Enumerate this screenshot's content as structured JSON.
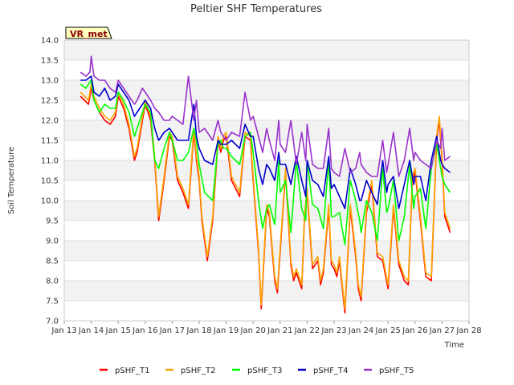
{
  "chart_data": {
    "type": "line",
    "title": "Peltier SHF Temperatures",
    "xlabel": "Time",
    "ylabel": "Soil Temperature",
    "site_label": "VR_met",
    "xlim": [
      13,
      28
    ],
    "ylim": [
      7.0,
      14.0
    ],
    "x_ticks": [
      {
        "v": 13,
        "label": "Jan 13"
      },
      {
        "v": 14,
        "label": "Jan 14"
      },
      {
        "v": 15,
        "label": "Jan 15"
      },
      {
        "v": 16,
        "label": "Jan 16"
      },
      {
        "v": 17,
        "label": "Jan 17"
      },
      {
        "v": 18,
        "label": "Jan 18"
      },
      {
        "v": 19,
        "label": "Jan 19"
      },
      {
        "v": 20,
        "label": "Jan 20"
      },
      {
        "v": 21,
        "label": "Jan 21"
      },
      {
        "v": 22,
        "label": "Jan 22"
      },
      {
        "v": 23,
        "label": "Jan 23"
      },
      {
        "v": 24,
        "label": "Jan 24"
      },
      {
        "v": 25,
        "label": "Jan 25"
      },
      {
        "v": 26,
        "label": "Jan 26"
      },
      {
        "v": 27,
        "label": "Jan 27"
      },
      {
        "v": 28,
        "label": "Jan 28"
      }
    ],
    "y_ticks": [
      "7.0",
      "7.5",
      "8.0",
      "8.5",
      "9.0",
      "9.5",
      "10.0",
      "10.5",
      "11.0",
      "11.5",
      "12.0",
      "12.5",
      "13.0",
      "13.5",
      "14.0"
    ],
    "grid": "horizontal bands",
    "legend_position": "bottom",
    "series": [
      {
        "name": "pSHF_T1",
        "color": "#ff0000",
        "x": [
          13.6,
          13.75,
          13.9,
          14.0,
          14.1,
          14.3,
          14.5,
          14.7,
          14.9,
          15.0,
          15.2,
          15.4,
          15.6,
          15.7,
          15.9,
          16.0,
          16.2,
          16.35,
          16.5,
          16.7,
          16.9,
          17.0,
          17.2,
          17.4,
          17.6,
          17.8,
          17.9,
          18.0,
          18.1,
          18.3,
          18.5,
          18.7,
          18.8,
          18.9,
          19.0,
          19.2,
          19.5,
          19.7,
          19.9,
          20.0,
          20.2,
          20.3,
          20.4,
          20.5,
          20.6,
          20.8,
          20.9,
          21.0,
          21.2,
          21.4,
          21.5,
          21.6,
          21.8,
          21.9,
          22.0,
          22.2,
          22.4,
          22.5,
          22.6,
          22.8,
          22.9,
          23.0,
          23.1,
          23.2,
          23.4,
          23.6,
          23.8,
          23.9,
          24.0,
          24.2,
          24.4,
          24.6,
          24.8,
          25.0,
          25.2,
          25.4,
          25.6,
          25.75,
          25.9,
          26.0,
          26.2,
          26.4,
          26.6,
          26.8,
          26.9,
          27.0,
          27.1,
          27.3
        ],
        "y": [
          12.6,
          12.5,
          12.4,
          12.8,
          12.5,
          12.2,
          12.0,
          11.9,
          12.1,
          12.6,
          12.3,
          11.8,
          11.0,
          11.2,
          12.0,
          12.4,
          12.0,
          11.0,
          9.5,
          10.5,
          11.6,
          11.5,
          10.5,
          10.2,
          9.8,
          11.7,
          11.0,
          10.5,
          9.5,
          8.5,
          9.5,
          11.5,
          11.2,
          11.5,
          11.6,
          10.5,
          10.1,
          11.6,
          11.5,
          10.5,
          8.7,
          7.3,
          8.5,
          9.8,
          9.6,
          8.0,
          7.7,
          8.7,
          10.7,
          8.4,
          8.0,
          8.2,
          7.8,
          9.5,
          10.2,
          8.3,
          8.5,
          7.9,
          8.2,
          9.8,
          8.4,
          8.3,
          8.1,
          8.5,
          7.2,
          9.8,
          8.6,
          7.8,
          7.5,
          9.7,
          10.4,
          8.6,
          8.5,
          7.8,
          9.8,
          8.4,
          8.0,
          7.9,
          10.5,
          10.7,
          9.5,
          8.1,
          8.0,
          11.5,
          12.0,
          11.0,
          9.6,
          9.2
        ]
      },
      {
        "name": "pSHF_T2",
        "color": "#ffa500",
        "x": [
          13.6,
          13.75,
          13.9,
          14.0,
          14.1,
          14.3,
          14.5,
          14.7,
          14.9,
          15.0,
          15.2,
          15.4,
          15.6,
          15.7,
          15.9,
          16.0,
          16.2,
          16.35,
          16.5,
          16.7,
          16.9,
          17.0,
          17.2,
          17.4,
          17.6,
          17.8,
          17.9,
          18.0,
          18.1,
          18.3,
          18.5,
          18.7,
          18.8,
          18.9,
          19.0,
          19.2,
          19.5,
          19.7,
          19.9,
          20.0,
          20.2,
          20.3,
          20.4,
          20.5,
          20.6,
          20.8,
          20.9,
          21.0,
          21.2,
          21.4,
          21.5,
          21.6,
          21.8,
          21.9,
          22.0,
          22.2,
          22.4,
          22.5,
          22.6,
          22.8,
          22.9,
          23.0,
          23.1,
          23.2,
          23.4,
          23.6,
          23.8,
          23.9,
          24.0,
          24.2,
          24.4,
          24.6,
          24.8,
          25.0,
          25.2,
          25.4,
          25.6,
          25.75,
          25.9,
          26.0,
          26.2,
          26.4,
          26.6,
          26.8,
          26.9,
          27.0,
          27.1,
          27.3
        ],
        "y": [
          12.7,
          12.6,
          12.5,
          12.9,
          12.6,
          12.3,
          12.1,
          12.0,
          12.2,
          12.7,
          12.4,
          11.9,
          11.1,
          11.3,
          12.1,
          12.5,
          12.1,
          11.1,
          9.6,
          10.6,
          11.7,
          11.6,
          10.6,
          10.3,
          9.9,
          11.8,
          11.1,
          10.6,
          9.6,
          8.6,
          9.6,
          11.6,
          11.3,
          11.6,
          11.7,
          10.6,
          10.2,
          11.7,
          11.6,
          10.6,
          8.8,
          7.4,
          8.6,
          9.9,
          9.7,
          8.1,
          7.8,
          8.8,
          10.8,
          8.5,
          8.1,
          8.3,
          7.9,
          9.6,
          10.3,
          8.4,
          8.6,
          8.0,
          8.3,
          9.9,
          8.5,
          8.4,
          8.2,
          8.6,
          7.3,
          9.9,
          8.7,
          7.9,
          7.6,
          9.8,
          10.5,
          8.7,
          8.6,
          7.9,
          9.9,
          8.5,
          8.1,
          8.0,
          10.6,
          10.8,
          9.6,
          8.2,
          8.1,
          11.6,
          12.1,
          11.1,
          9.7,
          9.3
        ]
      },
      {
        "name": "pSHF_T3",
        "color": "#00ff00",
        "x": [
          13.6,
          13.8,
          14.0,
          14.1,
          14.3,
          14.5,
          14.7,
          14.9,
          15.0,
          15.2,
          15.4,
          15.6,
          15.7,
          15.9,
          16.0,
          16.2,
          16.35,
          16.5,
          16.7,
          16.9,
          17.0,
          17.2,
          17.4,
          17.6,
          17.8,
          17.9,
          18.0,
          18.2,
          18.5,
          18.7,
          18.8,
          18.9,
          19.0,
          19.2,
          19.5,
          19.7,
          19.9,
          20.0,
          20.2,
          20.35,
          20.5,
          20.6,
          20.8,
          20.95,
          21.0,
          21.2,
          21.4,
          21.6,
          21.8,
          21.95,
          22.0,
          22.2,
          22.4,
          22.6,
          22.8,
          22.9,
          23.0,
          23.2,
          23.4,
          23.6,
          23.8,
          23.95,
          24.0,
          24.2,
          24.4,
          24.6,
          24.8,
          24.95,
          25.0,
          25.2,
          25.4,
          25.6,
          25.8,
          25.95,
          26.0,
          26.2,
          26.4,
          26.6,
          26.8,
          26.95,
          27.0,
          27.1,
          27.3
        ],
        "y": [
          12.9,
          12.8,
          13.0,
          12.5,
          12.2,
          12.4,
          12.3,
          12.3,
          12.7,
          12.5,
          12.2,
          11.6,
          11.8,
          12.2,
          12.4,
          12.2,
          11.0,
          10.8,
          11.3,
          11.7,
          11.5,
          11.0,
          11.0,
          11.2,
          11.8,
          11.5,
          10.9,
          10.2,
          10.0,
          11.4,
          11.5,
          11.3,
          11.3,
          11.1,
          10.9,
          11.6,
          11.7,
          11.2,
          10.0,
          9.3,
          9.8,
          9.9,
          9.4,
          11.0,
          10.2,
          10.5,
          9.2,
          11.0,
          9.8,
          9.5,
          11.0,
          9.9,
          9.8,
          9.3,
          11.0,
          9.6,
          9.6,
          9.7,
          8.9,
          10.5,
          10.0,
          9.5,
          9.2,
          10.0,
          9.7,
          9.0,
          10.8,
          9.7,
          9.8,
          10.5,
          9.0,
          9.6,
          10.9,
          9.8,
          10.1,
          10.3,
          9.3,
          10.8,
          11.4,
          10.8,
          10.6,
          10.4,
          10.2
        ]
      },
      {
        "name": "pSHF_T4",
        "color": "#0000cc",
        "x": [
          13.6,
          13.8,
          14.0,
          14.1,
          14.3,
          14.5,
          14.7,
          14.9,
          15.0,
          15.2,
          15.4,
          15.6,
          15.7,
          15.9,
          16.0,
          16.2,
          16.35,
          16.5,
          16.7,
          16.9,
          17.0,
          17.2,
          17.4,
          17.6,
          17.8,
          17.9,
          18.0,
          18.2,
          18.5,
          18.7,
          18.8,
          18.9,
          19.0,
          19.2,
          19.5,
          19.7,
          19.9,
          20.0,
          20.2,
          20.35,
          20.5,
          20.6,
          20.8,
          20.95,
          21.0,
          21.2,
          21.4,
          21.6,
          21.8,
          21.95,
          22.0,
          22.2,
          22.4,
          22.6,
          22.8,
          22.9,
          23.0,
          23.2,
          23.4,
          23.6,
          23.8,
          23.95,
          24.0,
          24.2,
          24.4,
          24.6,
          24.8,
          24.95,
          25.0,
          25.2,
          25.4,
          25.6,
          25.8,
          25.95,
          26.0,
          26.2,
          26.4,
          26.6,
          26.8,
          26.95,
          27.0,
          27.1,
          27.3
        ],
        "y": [
          13.0,
          13.0,
          13.1,
          12.7,
          12.6,
          12.8,
          12.5,
          12.6,
          12.9,
          12.7,
          12.5,
          12.1,
          12.2,
          12.4,
          12.5,
          12.3,
          11.8,
          11.5,
          11.7,
          11.8,
          11.7,
          11.5,
          11.5,
          11.5,
          12.4,
          11.6,
          11.3,
          11.0,
          10.9,
          11.5,
          11.4,
          11.4,
          11.4,
          11.5,
          11.3,
          11.9,
          11.6,
          11.6,
          10.8,
          10.4,
          10.9,
          10.8,
          10.5,
          11.2,
          10.9,
          10.9,
          10.4,
          11.1,
          10.5,
          10.1,
          11.0,
          10.5,
          10.4,
          10.1,
          11.1,
          10.3,
          10.4,
          10.1,
          9.8,
          10.8,
          10.4,
          10.0,
          10.0,
          10.5,
          10.2,
          9.9,
          11.0,
          10.2,
          10.4,
          10.6,
          9.8,
          10.4,
          11.0,
          10.4,
          10.6,
          10.6,
          10.0,
          11.0,
          11.6,
          11.0,
          10.9,
          10.8,
          10.7
        ]
      },
      {
        "name": "pSHF_T5",
        "color": "#9932cc",
        "x": [
          13.6,
          13.8,
          13.95,
          14.0,
          14.1,
          14.3,
          14.5,
          14.7,
          14.9,
          15.0,
          15.2,
          15.4,
          15.6,
          15.7,
          15.9,
          16.0,
          16.2,
          16.35,
          16.5,
          16.7,
          16.9,
          17.0,
          17.2,
          17.4,
          17.6,
          17.8,
          17.9,
          18.0,
          18.2,
          18.5,
          18.7,
          18.8,
          18.9,
          19.0,
          19.2,
          19.5,
          19.7,
          19.9,
          20.0,
          20.2,
          20.35,
          20.5,
          20.6,
          20.8,
          20.95,
          21.0,
          21.2,
          21.4,
          21.6,
          21.8,
          21.95,
          22.0,
          22.2,
          22.4,
          22.6,
          22.8,
          22.9,
          23.0,
          23.2,
          23.4,
          23.6,
          23.8,
          23.95,
          24.0,
          24.2,
          24.4,
          24.6,
          24.8,
          24.95,
          25.0,
          25.2,
          25.4,
          25.6,
          25.8,
          25.95,
          26.0,
          26.2,
          26.4,
          26.6,
          26.8,
          26.95,
          27.0,
          27.1,
          27.3
        ],
        "y": [
          13.2,
          13.1,
          13.2,
          13.6,
          13.1,
          13.0,
          13.0,
          12.8,
          12.7,
          13.0,
          12.8,
          12.6,
          12.4,
          12.5,
          12.8,
          12.7,
          12.5,
          12.3,
          12.2,
          12.0,
          12.0,
          12.1,
          12.0,
          11.9,
          13.1,
          12.0,
          12.5,
          11.7,
          11.8,
          11.5,
          12.0,
          11.7,
          11.6,
          11.5,
          11.7,
          11.6,
          12.7,
          12.0,
          12.1,
          11.6,
          11.2,
          11.8,
          11.5,
          11.0,
          12.0,
          11.4,
          11.2,
          12.0,
          10.9,
          11.7,
          11.0,
          11.9,
          10.9,
          10.8,
          10.8,
          11.8,
          10.8,
          10.7,
          10.6,
          11.3,
          10.7,
          10.8,
          11.2,
          10.9,
          10.7,
          10.6,
          10.6,
          11.5,
          10.7,
          10.9,
          11.7,
          10.6,
          11.0,
          11.8,
          11.0,
          11.2,
          11.0,
          10.9,
          10.8,
          11.5,
          11.3,
          11.8,
          11.0,
          11.1
        ]
      }
    ]
  }
}
